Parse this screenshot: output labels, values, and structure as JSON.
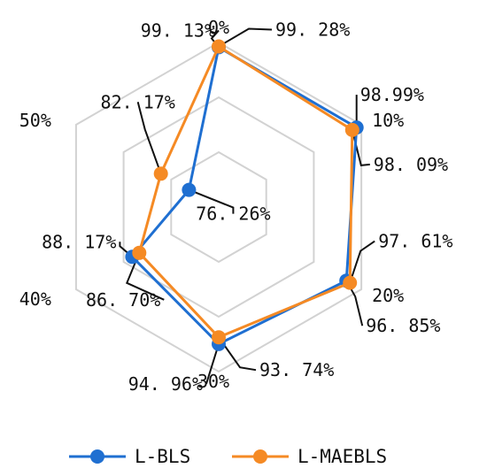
{
  "chart_data": {
    "type": "radar",
    "categories": [
      "0%",
      "10%",
      "20%",
      "30%",
      "40%",
      "50%"
    ],
    "ylim": [
      70,
      100
    ],
    "grid": true,
    "legend_position": "bottom",
    "series": [
      {
        "name": "L-BLS",
        "color": "#1f6fd1",
        "values": [
          99.13,
          98.99,
          96.85,
          94.96,
          88.17,
          76.26
        ],
        "labels": [
          "99. 13%",
          "98.99%",
          "96. 85%",
          "94. 96%",
          "88. 17%",
          "76. 26%"
        ]
      },
      {
        "name": "L-MAEBLS",
        "color": "#f58a24",
        "values": [
          99.28,
          98.09,
          97.61,
          93.74,
          86.7,
          82.17
        ],
        "labels": [
          "99. 28%",
          "98. 09%",
          "97. 61%",
          "93. 74%",
          "86. 70%",
          "82. 17%"
        ]
      }
    ]
  }
}
